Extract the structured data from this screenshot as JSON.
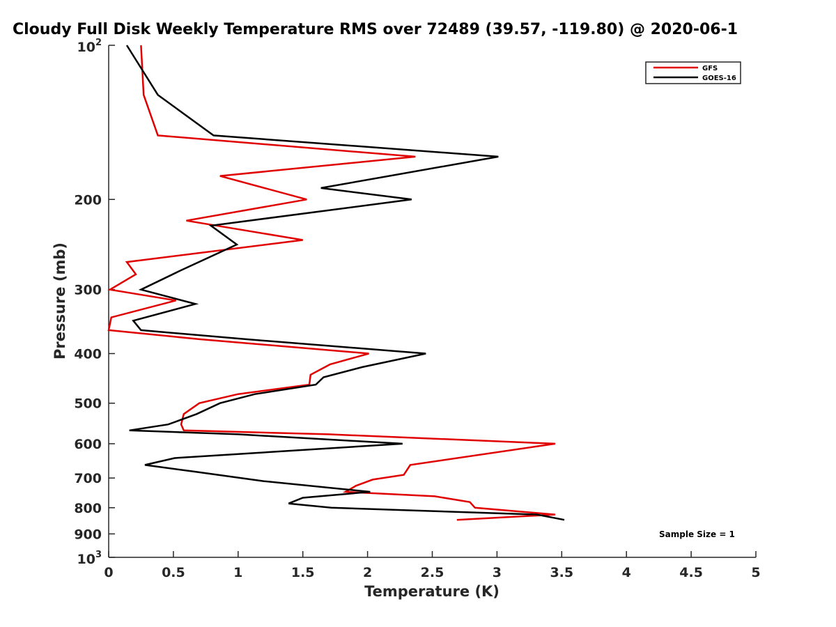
{
  "chart_data": {
    "type": "line",
    "title": "Cloudy Full Disk Weekly Temperature RMS over 72489 (39.57, -119.80) @ 2020-06-1",
    "xlabel": "Temperature (K)",
    "ylabel": "Pressure (mb)",
    "xlim": [
      0,
      5
    ],
    "ylim": [
      100,
      1000
    ],
    "y_scale": "log",
    "y_reversed": true,
    "x_ticks": [
      "0",
      "0.5",
      "1",
      "1.5",
      "2",
      "2.5",
      "3",
      "3.5",
      "4",
      "4.5",
      "5"
    ],
    "y_ticks": [
      {
        "value": 100,
        "base": "10",
        "exp": "2"
      },
      {
        "value": 200,
        "label": "200"
      },
      {
        "value": 300,
        "label": "300"
      },
      {
        "value": 400,
        "label": "400"
      },
      {
        "value": 500,
        "label": "500"
      },
      {
        "value": 600,
        "label": "600"
      },
      {
        "value": 700,
        "label": "700"
      },
      {
        "value": 800,
        "label": "800"
      },
      {
        "value": 900,
        "label": "900"
      },
      {
        "value": 1000,
        "base": "10",
        "exp": "3"
      }
    ],
    "grid": false,
    "legend_position": "top-right",
    "annotation": "Sample Size = 1",
    "series": [
      {
        "name": "GFS",
        "color": "#e00000",
        "points": [
          [
            0.25,
            100
          ],
          [
            0.27,
            125
          ],
          [
            0.38,
            150
          ],
          [
            2.37,
            165
          ],
          [
            0.86,
            180
          ],
          [
            1.53,
            200
          ],
          [
            0.6,
            220
          ],
          [
            1.5,
            240
          ],
          [
            0.14,
            265
          ],
          [
            0.21,
            280
          ],
          [
            0.01,
            300
          ],
          [
            0.52,
            315
          ],
          [
            0.02,
            340
          ],
          [
            0.0,
            360
          ],
          [
            0.7,
            375
          ],
          [
            2.01,
            400
          ],
          [
            1.71,
            420
          ],
          [
            1.56,
            440
          ],
          [
            1.55,
            460
          ],
          [
            1.0,
            480
          ],
          [
            0.7,
            500
          ],
          [
            0.58,
            525
          ],
          [
            0.56,
            550
          ],
          [
            0.58,
            565
          ],
          [
            1.7,
            575
          ],
          [
            3.45,
            600
          ],
          [
            2.33,
            660
          ],
          [
            2.28,
            690
          ],
          [
            2.04,
            705
          ],
          [
            1.91,
            725
          ],
          [
            1.83,
            745
          ],
          [
            2.52,
            760
          ],
          [
            2.79,
            780
          ],
          [
            2.83,
            800
          ],
          [
            3.45,
            825
          ],
          [
            2.69,
            845
          ]
        ]
      },
      {
        "name": "GOES-16",
        "color": "#000000",
        "points": [
          [
            0.14,
            100
          ],
          [
            0.38,
            125
          ],
          [
            0.81,
            150
          ],
          [
            3.01,
            165
          ],
          [
            1.64,
            190
          ],
          [
            2.34,
            200
          ],
          [
            0.79,
            225
          ],
          [
            0.99,
            245
          ],
          [
            0.56,
            275
          ],
          [
            0.25,
            300
          ],
          [
            0.67,
            320
          ],
          [
            0.19,
            345
          ],
          [
            0.25,
            360
          ],
          [
            1.06,
            375
          ],
          [
            2.45,
            400
          ],
          [
            1.96,
            425
          ],
          [
            1.66,
            445
          ],
          [
            1.6,
            460
          ],
          [
            1.13,
            480
          ],
          [
            0.86,
            500
          ],
          [
            0.68,
            525
          ],
          [
            0.46,
            550
          ],
          [
            0.16,
            565
          ],
          [
            1.0,
            575
          ],
          [
            2.27,
            600
          ],
          [
            0.51,
            640
          ],
          [
            0.28,
            660
          ],
          [
            0.66,
            680
          ],
          [
            1.2,
            710
          ],
          [
            2.02,
            745
          ],
          [
            1.5,
            765
          ],
          [
            1.39,
            785
          ],
          [
            1.72,
            800
          ],
          [
            3.31,
            825
          ],
          [
            3.52,
            845
          ]
        ]
      }
    ]
  }
}
